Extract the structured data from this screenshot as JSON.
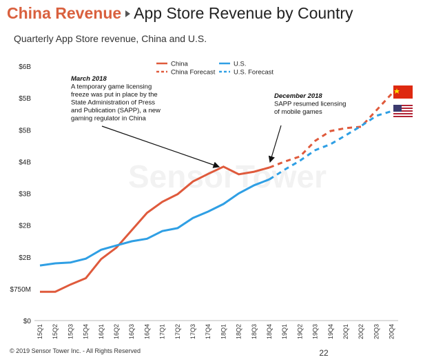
{
  "chart_data": {
    "type": "line",
    "brand": "China Revenue",
    "title": "App Store Revenue by Country",
    "subtitle": "Quarterly App Store revenue, China and U.S.",
    "categories": [
      "15Q1",
      "15Q2",
      "15Q3",
      "15Q4",
      "16Q1",
      "16Q2",
      "16Q3",
      "16Q4",
      "17Q1",
      "17Q2",
      "17Q3",
      "17Q4",
      "18Q1",
      "18Q2",
      "18Q3",
      "18Q4",
      "19Q1",
      "19Q2",
      "19Q3",
      "19Q4",
      "20Q1",
      "20Q2",
      "20Q3",
      "20Q4"
    ],
    "ylim": [
      0,
      6
    ],
    "yticks": [
      {
        "value": 0,
        "label": "$0"
      },
      {
        "value": 0.75,
        "label": "$750M"
      },
      {
        "value": 1.5,
        "label": "$2B"
      },
      {
        "value": 2.25,
        "label": "$2B"
      },
      {
        "value": 3,
        "label": "$3B"
      },
      {
        "value": 3.75,
        "label": "$4B"
      },
      {
        "value": 4.5,
        "label": "$5B"
      },
      {
        "value": 5.25,
        "label": "$5B"
      },
      {
        "value": 6,
        "label": "$6B"
      }
    ],
    "series": [
      {
        "name": "China",
        "color": "#df5a3c",
        "dashed": false,
        "values": [
          0.68,
          0.68,
          0.85,
          1.0,
          1.45,
          1.72,
          2.13,
          2.54,
          2.8,
          2.98,
          3.28,
          3.46,
          3.63,
          3.45,
          3.51,
          3.61,
          null,
          null,
          null,
          null,
          null,
          null,
          null,
          null
        ]
      },
      {
        "name": "U.S.",
        "color": "#2f9fe4",
        "dashed": false,
        "values": [
          1.3,
          1.35,
          1.37,
          1.46,
          1.67,
          1.77,
          1.87,
          1.93,
          2.11,
          2.18,
          2.42,
          2.57,
          2.75,
          3.0,
          3.19,
          3.33,
          null,
          null,
          null,
          null,
          null,
          null,
          null,
          null
        ]
      },
      {
        "name": "China Forecast",
        "color": "#df5a3c",
        "dashed": true,
        "values": [
          null,
          null,
          null,
          null,
          null,
          null,
          null,
          null,
          null,
          null,
          null,
          null,
          null,
          null,
          null,
          3.61,
          3.75,
          3.87,
          4.24,
          4.47,
          4.54,
          4.57,
          4.96,
          5.35
        ]
      },
      {
        "name": "U.S. Forecast",
        "color": "#2f9fe4",
        "dashed": true,
        "values": [
          null,
          null,
          null,
          null,
          null,
          null,
          null,
          null,
          null,
          null,
          null,
          null,
          null,
          null,
          null,
          3.33,
          3.56,
          3.77,
          4.02,
          4.16,
          4.37,
          4.59,
          4.83,
          4.94
        ]
      }
    ],
    "annotations": [
      {
        "heading": "March 2018",
        "lines": [
          "A temporary game licensing",
          "freeze was put in place by the",
          "State Administration of Press",
          "and Publication (SAPP), a new",
          "gaming regulator in China"
        ]
      },
      {
        "heading": "December 2018",
        "lines": [
          "SAPP resumed licensing",
          "of mobile games"
        ]
      }
    ],
    "watermark": "SensorTower",
    "footer": "© 2019 Sensor Tower Inc. - All Rights Reserved",
    "page_number": "22"
  }
}
